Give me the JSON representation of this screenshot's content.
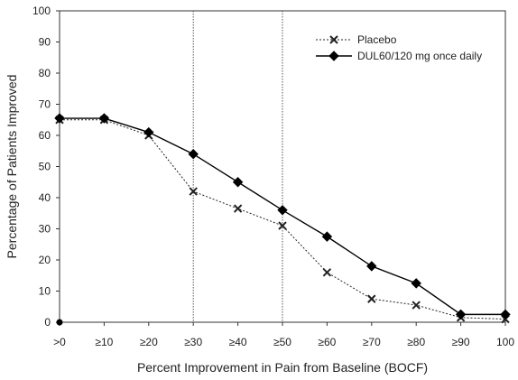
{
  "chart_data": {
    "type": "line",
    "title": "",
    "xlabel": "Percent Improvement in Pain from Baseline (BOCF)",
    "ylabel": "Percentage of Patients Improved",
    "categories": [
      ">0",
      "≥10",
      "≥20",
      "≥30",
      "≥40",
      "≥50",
      "≥60",
      "≥70",
      "≥80",
      "≥90",
      "100"
    ],
    "ylim": [
      0,
      100
    ],
    "yticks": [
      0,
      10,
      20,
      30,
      40,
      50,
      60,
      70,
      80,
      90,
      100
    ],
    "reference_lines_at": [
      "≥30",
      "≥50"
    ],
    "legend_position": "top-right",
    "grid": false,
    "series": [
      {
        "name": "Placebo",
        "style": "dotted",
        "marker": "x",
        "color": "#222222",
        "values": [
          65,
          65,
          60,
          42,
          36.5,
          31,
          16,
          7.5,
          5.5,
          1.5,
          1
        ]
      },
      {
        "name": "DUL60/120 mg once daily",
        "style": "solid",
        "marker": "diamond",
        "color": "#000000",
        "values": [
          65.5,
          65.5,
          61,
          54,
          45,
          36,
          27.5,
          18,
          12.5,
          2.5,
          2.5
        ]
      }
    ]
  }
}
